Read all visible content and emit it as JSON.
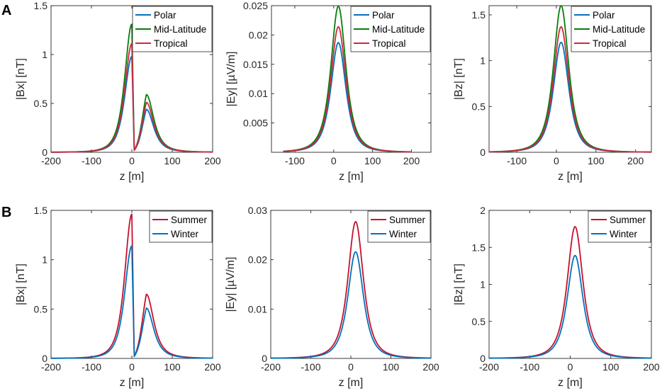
{
  "panel_labels": [
    "A",
    "B"
  ],
  "colors": {
    "Polar": "#0072bd",
    "Mid-Latitude": "#0a7d0a",
    "Tropical": "#d0283c",
    "Summer": "#c8102e",
    "Winter": "#0072bd",
    "axis": "#262626"
  },
  "chart_data": [
    {
      "type": "line",
      "panel": "A",
      "title": "",
      "xlabel": "z [m]",
      "ylabel": "|Bx| [nT]",
      "xlim": [
        -200,
        200
      ],
      "ylim": [
        0,
        1.5
      ],
      "xticks": [
        -200,
        -100,
        0,
        100,
        200
      ],
      "xtick_labels": [
        "-200",
        "-100",
        "0",
        "100",
        "200"
      ],
      "yticks": [
        0,
        0.5,
        1,
        1.5
      ],
      "ytick_labels": [
        "0",
        "0.5",
        "1",
        "1.5"
      ],
      "legend_position": "top-right",
      "series": [
        {
          "name": "Polar",
          "shape": "bx",
          "peak": 0.98,
          "hump": 0.44
        },
        {
          "name": "Mid-Latitude",
          "shape": "bx",
          "peak": 1.31,
          "hump": 0.59
        },
        {
          "name": "Tropical",
          "shape": "bx",
          "peak": 1.11,
          "hump": 0.51
        }
      ]
    },
    {
      "type": "line",
      "panel": "A",
      "title": "",
      "xlabel": "z [m]",
      "ylabel": "|Ey| [µV/m]",
      "xlim": [
        -160,
        250
      ],
      "ylim": [
        0,
        0.025
      ],
      "curve_range": [
        -130,
        200
      ],
      "xticks": [
        -100,
        0,
        100,
        200
      ],
      "xtick_labels": [
        "-100",
        "0",
        "100",
        "200"
      ],
      "yticks": [
        0.005,
        0.01,
        0.015,
        0.02,
        0.025
      ],
      "ytick_labels": [
        "0.005",
        "0.01",
        "0.015",
        "0.02",
        "0.025"
      ],
      "legend_position": "top-right",
      "series": [
        {
          "name": "Polar",
          "shape": "bell",
          "peak": 0.0187
        },
        {
          "name": "Mid-Latitude",
          "shape": "bell",
          "peak": 0.0249
        },
        {
          "name": "Tropical",
          "shape": "bell",
          "peak": 0.0214
        }
      ]
    },
    {
      "type": "line",
      "panel": "A",
      "title": "",
      "xlabel": "z [m]",
      "ylabel": "|Bz| [nT]",
      "xlim": [
        -170,
        240
      ],
      "ylim": [
        0,
        1.6
      ],
      "xticks": [
        -100,
        0,
        100,
        200
      ],
      "xtick_labels": [
        "-100",
        "0",
        "100",
        "200"
      ],
      "yticks": [
        0,
        0.5,
        1,
        1.5
      ],
      "ytick_labels": [
        "0",
        "0.5",
        "1",
        "1.5"
      ],
      "legend_position": "top-right",
      "series": [
        {
          "name": "Polar",
          "shape": "bell",
          "peak": 1.2
        },
        {
          "name": "Mid-Latitude",
          "shape": "bell",
          "peak": 1.6
        },
        {
          "name": "Tropical",
          "shape": "bell",
          "peak": 1.37
        }
      ]
    },
    {
      "type": "line",
      "panel": "B",
      "title": "",
      "xlabel": "z [m]",
      "ylabel": "|Bx| [nT]",
      "xlim": [
        -200,
        200
      ],
      "ylim": [
        0,
        1.5
      ],
      "xticks": [
        -200,
        -100,
        0,
        100,
        200
      ],
      "xtick_labels": [
        "-200",
        "-100",
        "0",
        "100",
        "200"
      ],
      "yticks": [
        0,
        0.5,
        1,
        1.5
      ],
      "ytick_labels": [
        "0",
        "0.5",
        "1",
        "1.5"
      ],
      "legend_position": "top-right",
      "series": [
        {
          "name": "Summer",
          "shape": "bx",
          "peak": 1.46,
          "hump": 0.65
        },
        {
          "name": "Winter",
          "shape": "bx",
          "peak": 1.14,
          "hump": 0.51
        }
      ]
    },
    {
      "type": "line",
      "panel": "B",
      "title": "",
      "xlabel": "z [m]",
      "ylabel": "|Ey| [µV/m]",
      "xlim": [
        -200,
        200
      ],
      "ylim": [
        0,
        0.03
      ],
      "xticks": [
        -200,
        -100,
        0,
        100,
        200
      ],
      "xtick_labels": [
        "-200",
        "-100",
        "0",
        "100",
        "200"
      ],
      "yticks": [
        0,
        0.01,
        0.02,
        0.03
      ],
      "ytick_labels": [
        "0",
        "0.01",
        "0.02",
        "0.03"
      ],
      "legend_position": "top-right",
      "series": [
        {
          "name": "Summer",
          "shape": "bell",
          "peak": 0.0277
        },
        {
          "name": "Winter",
          "shape": "bell",
          "peak": 0.0216
        }
      ]
    },
    {
      "type": "line",
      "panel": "B",
      "title": "",
      "xlabel": "z [m]",
      "ylabel": "|Bz| [nT]",
      "xlim": [
        -200,
        200
      ],
      "ylim": [
        0,
        2
      ],
      "xticks": [
        -200,
        -100,
        0,
        100,
        200
      ],
      "xtick_labels": [
        "-200",
        "-100",
        "0",
        "100",
        "200"
      ],
      "yticks": [
        0,
        0.5,
        1,
        1.5,
        2
      ],
      "ytick_labels": [
        "0",
        "0.5",
        "1",
        "1.5",
        "2"
      ],
      "legend_position": "top-right",
      "series": [
        {
          "name": "Summer",
          "shape": "bell",
          "peak": 1.78
        },
        {
          "name": "Winter",
          "shape": "bell",
          "peak": 1.39
        }
      ]
    }
  ]
}
